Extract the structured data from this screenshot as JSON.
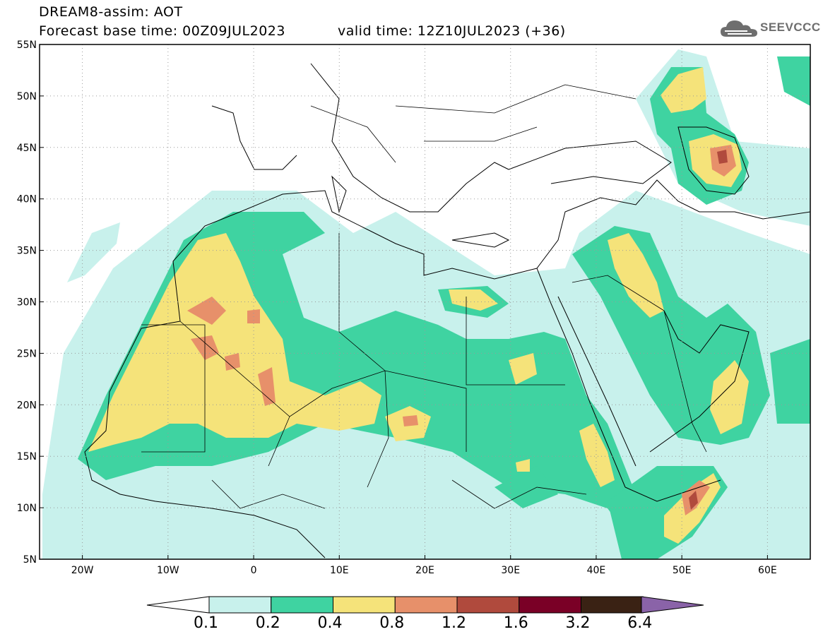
{
  "header": {
    "model_title": "DREAM8-assim: AOT",
    "base_time": "Forecast base time: 00Z09JUL2023",
    "valid_time": "valid time: 12Z10JUL2023 (+36)",
    "logo_text": "SEEVCCC"
  },
  "map": {
    "lat_labels": [
      "55N",
      "50N",
      "45N",
      "40N",
      "35N",
      "30N",
      "25N",
      "20N",
      "15N",
      "10N",
      "5N"
    ],
    "lon_labels": [
      "20W",
      "10W",
      "0",
      "10E",
      "20E",
      "30E",
      "40E",
      "50E",
      "60E"
    ],
    "extent": {
      "lon": [
        -25,
        65
      ],
      "lat": [
        5,
        55
      ]
    },
    "field_name": "AOT"
  },
  "colorbar": {
    "levels": [
      "0.1",
      "0.2",
      "0.4",
      "0.8",
      "1.2",
      "1.6",
      "3.2",
      "6.4"
    ],
    "colors": [
      "#c8f1ec",
      "#3fd3a1",
      "#f5e37a",
      "#e7906a",
      "#b04a3d",
      "#7a0026",
      "#3a2214",
      "#8a63a8"
    ]
  }
}
